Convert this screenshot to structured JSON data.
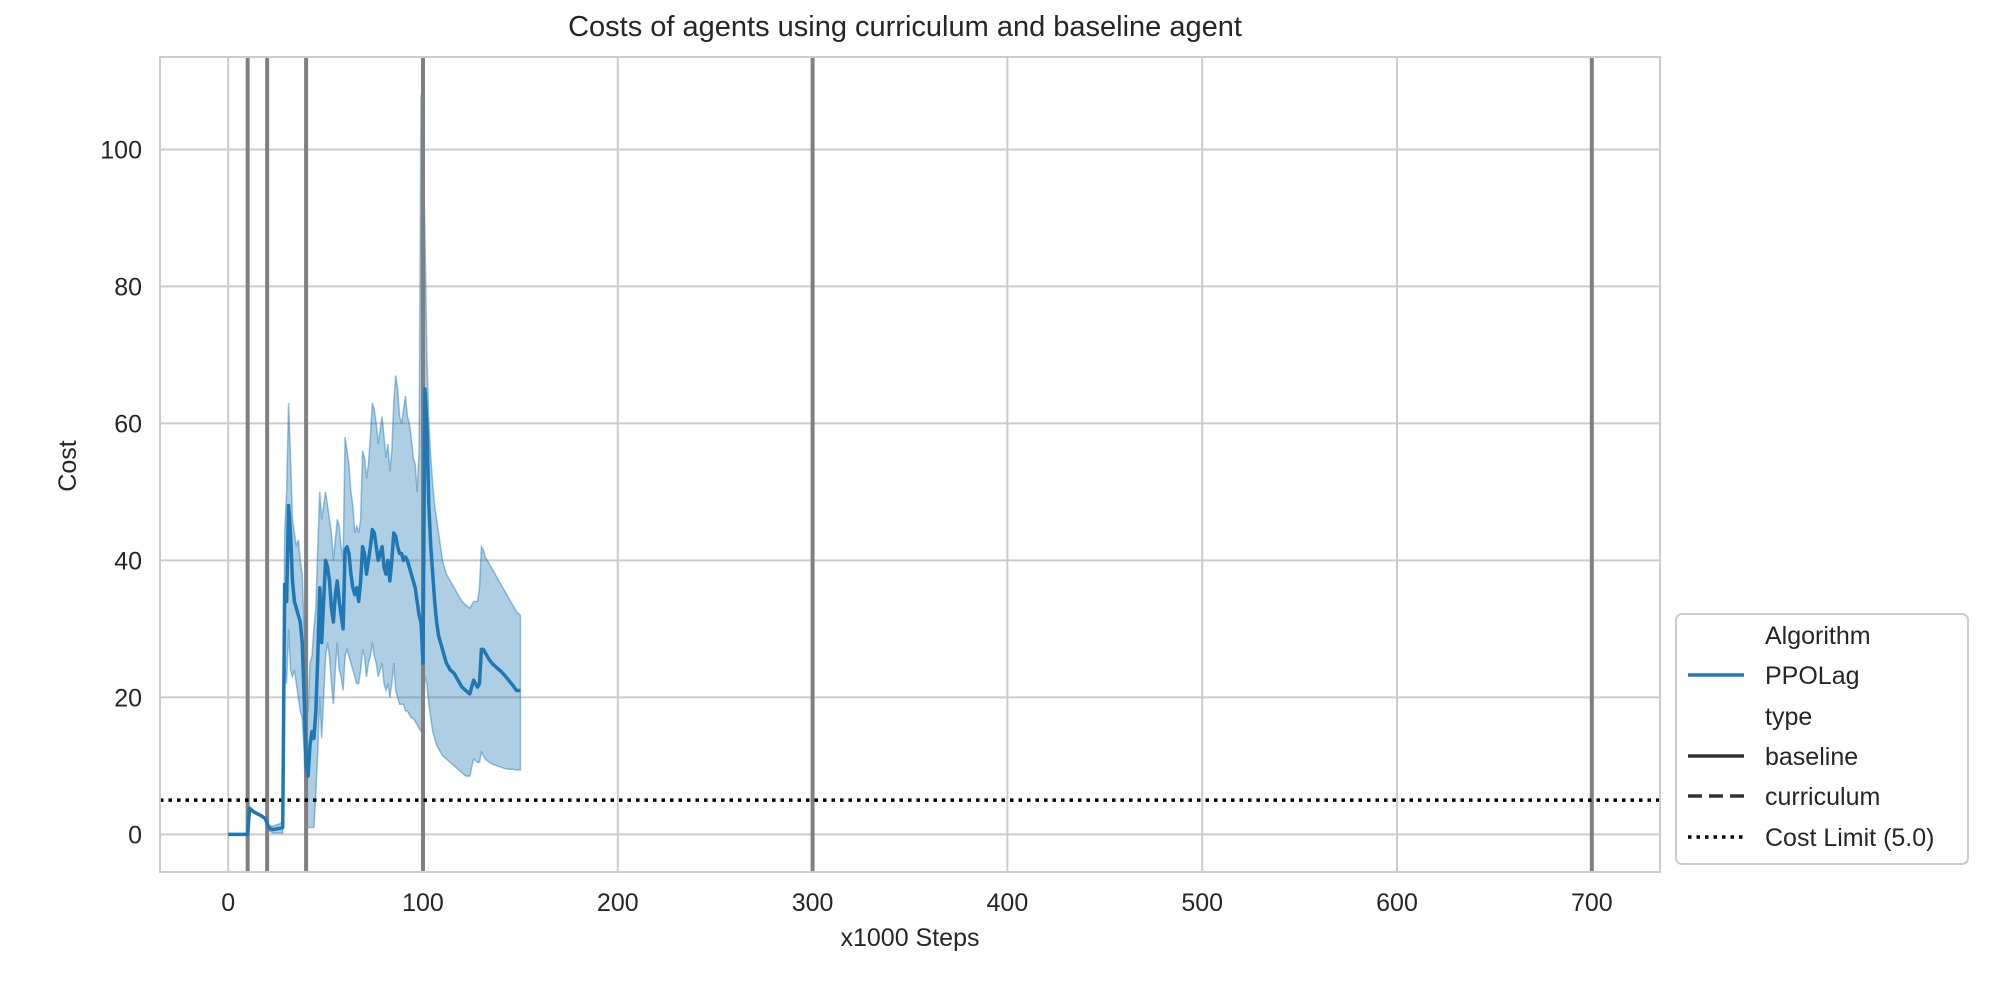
{
  "chart_data": {
    "type": "line",
    "title": "Costs of agents using curriculum and baseline agent",
    "xlabel": "x1000 Steps",
    "ylabel": "Cost",
    "xlim": [
      -35,
      735
    ],
    "ylim": [
      -5.5,
      113.5
    ],
    "xticks": [
      0,
      100,
      200,
      300,
      400,
      500,
      600,
      700
    ],
    "yticks": [
      0,
      20,
      40,
      60,
      80,
      100
    ],
    "grid": true,
    "legend_placement": "lower-right outside",
    "colors": {
      "series": "#1f77b4",
      "band": "#1f77b4",
      "vlines": "#808080",
      "limit": "#000000",
      "grid": "#cccccc",
      "legend_key": "#333333"
    },
    "legend": {
      "group1_title": "Algorithm",
      "algorithm": "PPOLag",
      "group2_title": "type",
      "baseline": "baseline",
      "curriculum": "curriculum",
      "cost_limit": "Cost Limit (5.0)"
    },
    "cost_limit": 5.0,
    "vertical_lines": [
      10,
      20,
      40,
      100,
      300,
      700
    ],
    "series": [
      {
        "name": "PPOLag",
        "type": "baseline",
        "x": [
          0,
          2,
          5,
          8,
          10,
          11,
          13,
          15,
          17,
          19,
          20,
          21,
          23,
          25,
          27,
          28,
          29,
          30,
          31,
          32,
          33,
          34,
          35,
          36,
          37,
          38,
          39,
          40,
          41,
          42,
          43,
          44,
          45,
          46,
          47,
          48,
          49,
          50,
          51,
          52,
          53,
          54,
          55,
          56,
          57,
          58,
          59,
          60,
          61,
          62,
          63,
          64,
          65,
          66,
          67,
          68,
          69,
          70,
          71,
          72,
          73,
          74,
          75,
          76,
          77,
          78,
          79,
          80,
          81,
          82,
          83,
          84,
          85,
          86,
          87,
          88,
          89,
          90,
          91,
          92,
          93,
          94,
          95,
          96,
          97,
          98,
          99,
          100,
          101,
          102,
          103,
          104,
          105,
          106,
          107,
          108,
          109,
          110,
          112,
          114,
          116,
          118,
          120,
          122,
          124,
          126,
          128,
          129,
          130,
          131,
          132,
          134,
          136,
          138,
          140,
          142,
          144,
          146,
          148,
          150
        ],
        "mean": [
          0,
          0,
          0,
          0,
          0,
          3.8,
          3.3,
          3,
          2.7,
          2.3,
          1.6,
          0.9,
          0.7,
          0.8,
          0.9,
          1,
          36.5,
          34,
          48,
          44,
          37,
          34,
          33,
          32,
          31,
          28,
          20,
          10,
          8.5,
          13,
          15,
          14,
          18,
          26,
          36,
          28,
          34,
          40,
          39,
          37,
          33,
          31,
          35,
          37,
          34,
          32,
          30,
          41.5,
          42,
          41,
          38,
          36,
          35,
          36,
          34,
          37,
          42,
          41,
          38,
          40,
          42,
          44.5,
          44,
          42,
          40,
          41,
          42,
          39,
          38,
          40,
          37,
          40,
          44,
          43.5,
          42,
          41,
          41,
          40,
          40.5,
          40,
          39,
          38,
          37,
          36,
          34,
          32,
          31,
          25,
          65,
          60,
          48,
          42,
          38,
          34,
          31,
          29,
          28,
          27,
          25,
          24,
          23.5,
          22.5,
          21.5,
          21,
          20.5,
          22.5,
          21.5,
          22,
          27,
          27,
          26.5,
          25.5,
          24.8,
          24.3,
          23.8,
          23.2,
          22.5,
          21.8,
          21,
          21
        ],
        "upper": [
          0,
          0,
          0,
          0,
          0,
          4,
          3.5,
          3.1,
          2.8,
          2.4,
          1.8,
          1.3,
          1.2,
          1.4,
          1.6,
          2,
          44,
          50,
          63,
          55,
          46,
          44,
          42,
          43,
          40,
          38,
          30,
          23,
          18,
          25,
          26,
          30,
          33,
          42,
          50,
          46,
          48,
          50,
          48,
          46,
          44,
          40,
          43,
          46,
          45,
          42,
          40,
          58,
          56,
          54,
          50,
          48,
          44,
          45,
          44,
          46,
          56,
          55,
          52,
          54,
          58,
          63,
          62,
          60,
          57,
          59,
          61,
          58,
          55,
          57,
          53,
          56,
          63,
          67,
          65,
          61,
          60,
          62,
          64,
          61,
          60,
          58,
          55,
          54,
          50,
          56,
          108,
          100,
          88,
          70,
          60,
          55,
          51,
          48,
          46,
          44,
          42,
          40,
          38,
          37,
          36,
          35,
          34,
          33.5,
          33,
          34,
          34,
          36,
          42,
          41.5,
          40.5,
          39.5,
          38.5,
          37.5,
          36.5,
          35.5,
          34.5,
          33.5,
          32.5,
          32
        ],
        "lower": [
          0,
          0,
          0,
          0,
          0,
          3.6,
          3.1,
          2.9,
          2.6,
          2.2,
          1.4,
          0.5,
          0.2,
          0.2,
          0.2,
          0.2,
          25,
          22,
          30,
          24,
          23,
          24,
          22,
          20,
          18,
          17,
          12,
          1,
          1,
          1,
          1,
          1,
          6,
          12,
          20,
          14,
          20,
          26,
          28,
          26,
          22,
          19,
          24,
          28,
          24,
          23,
          21,
          26,
          27,
          26,
          25,
          24,
          23,
          22,
          22,
          24,
          27,
          26,
          23,
          25,
          26,
          28,
          26,
          25,
          23,
          24,
          25,
          22,
          21,
          22,
          20,
          22,
          25,
          21,
          20,
          19,
          19,
          19,
          18,
          18,
          17.5,
          17,
          17,
          16.5,
          16,
          15.5,
          15,
          15,
          23,
          22,
          19,
          17,
          15,
          14,
          13,
          12.5,
          12,
          11.5,
          11,
          10.5,
          10,
          9.5,
          9,
          8.5,
          8.5,
          11,
          10.5,
          10.5,
          12,
          11.5,
          11,
          10.5,
          10.2,
          10,
          9.8,
          9.6,
          9.5,
          9.5,
          9.4,
          9.4
        ]
      }
    ]
  }
}
